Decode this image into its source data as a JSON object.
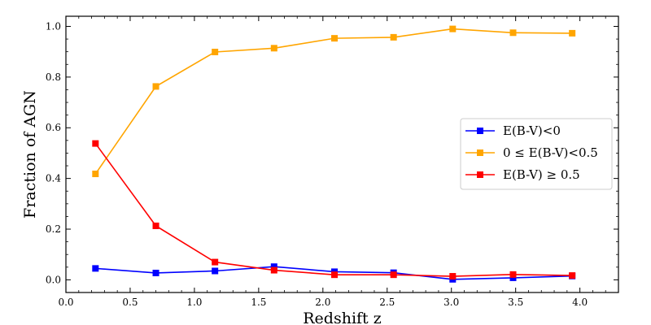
{
  "chart_data": {
    "type": "line",
    "title": "",
    "xlabel": "Redshift z",
    "ylabel": "Fraction of AGN",
    "xlim": [
      0.0,
      4.3
    ],
    "ylim": [
      -0.05,
      1.04
    ],
    "xticks": [
      "0.0",
      "0.5",
      "1.0",
      "1.5",
      "2.0",
      "2.5",
      "3.0",
      "3.5",
      "4.0"
    ],
    "yticks": [
      "0.0",
      "0.2",
      "0.4",
      "0.6",
      "0.8",
      "1.0"
    ],
    "grid": false,
    "legend_position": "center-right",
    "x": [
      0.23,
      0.7,
      1.16,
      1.62,
      2.09,
      2.55,
      3.01,
      3.48,
      3.94
    ],
    "series": [
      {
        "name": "E(B-V)<0",
        "color": "#0000ff",
        "marker": "square",
        "values": [
          0.045,
          0.027,
          0.035,
          0.052,
          0.032,
          0.028,
          0.002,
          0.008,
          0.015
        ]
      },
      {
        "name": "0 ≤ E(B-V)<0.5",
        "color": "#ffa500",
        "marker": "square",
        "values": [
          0.418,
          0.763,
          0.899,
          0.914,
          0.953,
          0.957,
          0.99,
          0.975,
          0.973
        ]
      },
      {
        "name": "E(B-V) ≥ 0.5",
        "color": "#ff0000",
        "marker": "square",
        "values": [
          0.538,
          0.213,
          0.07,
          0.038,
          0.02,
          0.02,
          0.014,
          0.021,
          0.017
        ]
      }
    ]
  }
}
